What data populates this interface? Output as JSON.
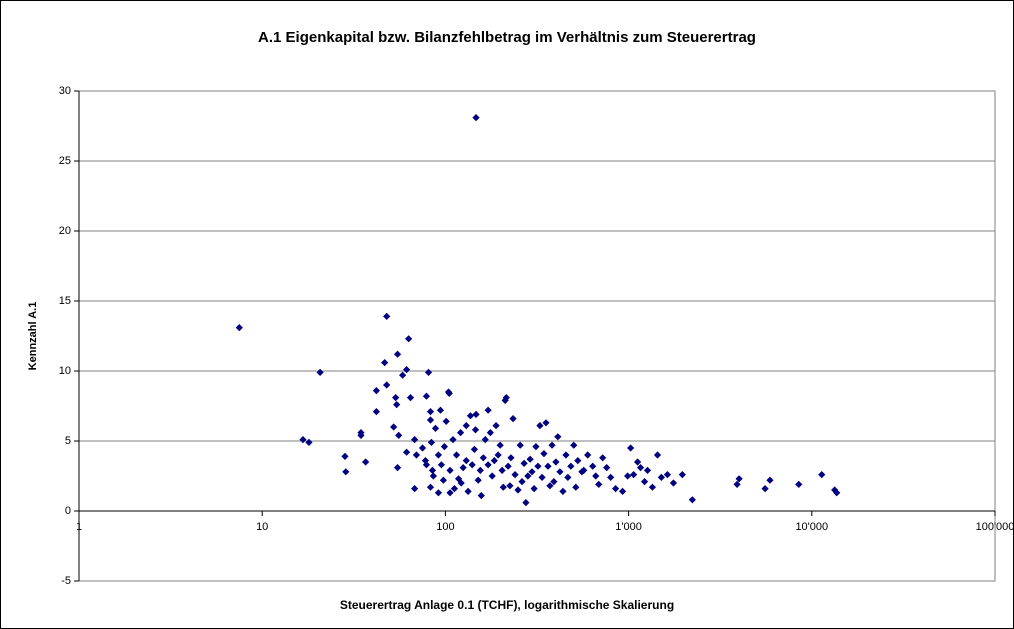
{
  "chart_data": {
    "type": "scatter",
    "title": "A.1 Eigenkapital bzw. Bilanzfehlbetrag im Verhältnis zum Steuerertrag",
    "xlabel": "Steuerertrag Anlage 0.1 (TCHF), logarithmische Skalierung",
    "ylabel": "Kennzahl A.1",
    "color": "#000080",
    "xlog": true,
    "grid": true,
    "xlim": [
      1,
      100000
    ],
    "xticks": [
      1,
      10,
      100,
      {
        "value": 1000,
        "label": "1'000"
      },
      {
        "value": 10000,
        "label": "10'000"
      },
      {
        "value": 100000,
        "label": "100'000"
      }
    ],
    "ylim": [
      -5,
      30
    ],
    "yticks": [
      -5,
      0,
      5,
      10,
      15,
      20,
      25,
      30
    ],
    "x": [
      7.5,
      16.7,
      18,
      20.7,
      28.3,
      28.6,
      34.6,
      34.6,
      36.7,
      42,
      42,
      46.6,
      47.8,
      47.8,
      52.2,
      53.5,
      54.2,
      54.8,
      54.8,
      55.6,
      58.4,
      61.4,
      61.4,
      63,
      64.5,
      67.9,
      67.9,
      69.5,
      75,
      77.8,
      78.8,
      78.8,
      80.9,
      82.9,
      82.9,
      82.9,
      83.9,
      85,
      86,
      88.3,
      91.6,
      91.6,
      94,
      95.1,
      97.5,
      98.8,
      101,
      104,
      105,
      106,
      106,
      110,
      112,
      115,
      118,
      121,
      122,
      125,
      130,
      130,
      133,
      137,
      140,
      144,
      146,
      147,
      147,
      151,
      155,
      157,
      161,
      165,
      171,
      171,
      176,
      180,
      185,
      189,
      194,
      199,
      204,
      207,
      212,
      215,
      220,
      225,
      228,
      234,
      240,
      249,
      256,
      262,
      269,
      275,
      282,
      290,
      297,
      305,
      312,
      320,
      328,
      337,
      345,
      354,
      363,
      372,
      382,
      391,
      401,
      411,
      422,
      438,
      455,
      466,
      484,
      502,
      515,
      528,
      556,
      569,
      598,
      637,
      662,
      687,
      722,
      759,
      798,
      849,
      927,
      988,
      1026,
      1065,
      1120,
      1162,
      1222,
      1268,
      1349,
      1438,
      1510,
      1629,
      1757,
      1965,
      2228,
      3910,
      4010,
      5560,
      5910,
      8490,
      11330,
      13330,
      13680
    ],
    "values": [
      13.1,
      5.1,
      4.9,
      9.9,
      3.9,
      2.8,
      5.6,
      5.4,
      3.5,
      8.6,
      7.1,
      10.6,
      13.9,
      9.0,
      6.0,
      8.1,
      7.6,
      11.2,
      3.1,
      5.4,
      9.7,
      10.1,
      4.2,
      12.3,
      8.1,
      1.6,
      5.1,
      4.0,
      4.5,
      3.6,
      8.2,
      3.3,
      9.9,
      7.1,
      6.5,
      1.7,
      4.9,
      2.9,
      2.5,
      5.9,
      1.3,
      4.0,
      7.2,
      3.3,
      2.2,
      4.6,
      6.4,
      8.5,
      8.4,
      2.9,
      1.3,
      5.1,
      1.6,
      4.0,
      2.3,
      5.6,
      2.0,
      3.1,
      6.1,
      3.6,
      1.4,
      6.8,
      3.3,
      4.4,
      5.8,
      6.9,
      28.1,
      2.2,
      2.9,
      1.1,
      3.8,
      5.1,
      3.3,
      7.2,
      5.6,
      2.5,
      3.6,
      6.1,
      4.0,
      4.7,
      2.9,
      1.7,
      7.9,
      8.1,
      3.2,
      1.8,
      3.8,
      6.6,
      2.6,
      1.5,
      4.7,
      2.1,
      3.4,
      0.6,
      2.5,
      3.7,
      2.8,
      1.6,
      4.6,
      3.2,
      6.1,
      2.4,
      4.1,
      6.3,
      3.2,
      1.8,
      4.7,
      2.1,
      3.5,
      5.3,
      2.8,
      1.4,
      4.0,
      2.4,
      3.2,
      4.7,
      1.7,
      3.6,
      2.8,
      2.9,
      4.0,
      3.2,
      2.5,
      1.9,
      3.8,
      3.1,
      2.4,
      1.6,
      1.4,
      2.5,
      4.5,
      2.6,
      3.5,
      3.1,
      2.1,
      2.9,
      1.7,
      4.0,
      2.4,
      2.6,
      2.0,
      2.6,
      0.8,
      1.9,
      2.3,
      1.6,
      2.2,
      1.9,
      2.6,
      1.5,
      1.3
    ]
  }
}
